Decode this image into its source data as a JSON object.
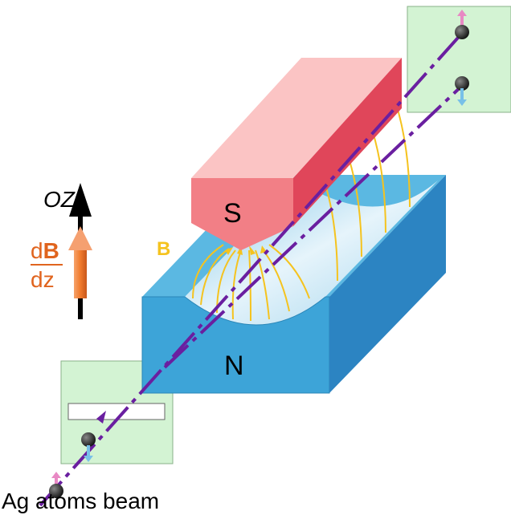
{
  "labels": {
    "axis": "OZ",
    "gradient_numerator": [
      "d",
      "B"
    ],
    "gradient_denominator": "dz",
    "field": "B",
    "south_pole": "S",
    "north_pole": "N",
    "caption": "Ag atoms beam"
  }
}
